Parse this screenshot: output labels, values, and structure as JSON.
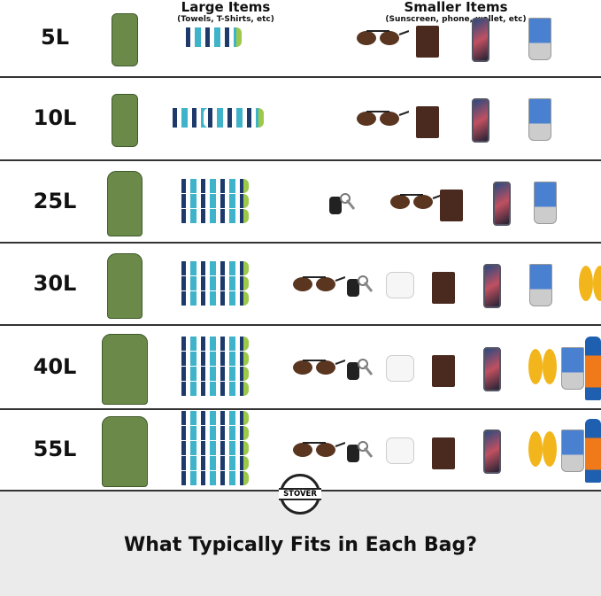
{
  "headers": {
    "large_title": "Large Items",
    "large_sub": "(Towels, T-Shirts, etc)",
    "small_title": "Smaller Items",
    "small_sub": "(Sunscreen, phone, wallet, etc)"
  },
  "rows": [
    {
      "size": "5L",
      "bag": "dry-bag",
      "towels": 1,
      "small": [
        "sunglasses",
        "wallet",
        "phone",
        "sunscreen"
      ]
    },
    {
      "size": "10L",
      "bag": "dry-bag",
      "towels": 2,
      "small": [
        "sunglasses",
        "wallet",
        "phone",
        "sunscreen"
      ]
    },
    {
      "size": "25L",
      "bag": "backpack",
      "towels": 3,
      "small": [
        "keys",
        "sunglasses",
        "wallet",
        "phone",
        "sunscreen"
      ]
    },
    {
      "size": "30L",
      "bag": "backpack",
      "towels": 3,
      "small": [
        "sunglasses",
        "keys",
        "earbuds",
        "wallet",
        "phone",
        "sunscreen",
        "flip-flops"
      ]
    },
    {
      "size": "40L",
      "bag": "large-backpack",
      "towels": 4,
      "small": [
        "sunglasses",
        "keys",
        "earbuds",
        "wallet",
        "phone",
        "flip-flops",
        "sunscreen",
        "spray-sunscreen"
      ]
    },
    {
      "size": "55L",
      "bag": "large-backpack",
      "towels": 5,
      "small": [
        "sunglasses",
        "keys",
        "earbuds",
        "wallet",
        "phone",
        "flip-flops",
        "sunscreen",
        "spray-sunscreen"
      ]
    }
  ],
  "logo": "STOVER",
  "footer_title": "What Typically Fits in Each Bag?",
  "colors": {
    "bag": "#6b8a4a",
    "towel_navy": "#1d3a6b",
    "towel_teal": "#3fb3c9",
    "towel_green": "#9cc94a",
    "footer_bg": "#ebebeb"
  }
}
